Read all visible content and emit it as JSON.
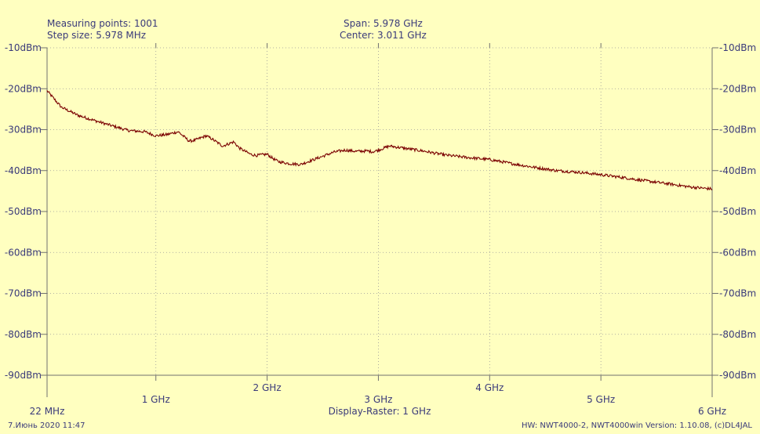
{
  "header": {
    "measuring_points": "Measuring points: 1001",
    "step_size": "Step size: 5.978 MHz",
    "span": "Span: 5.978 GHz",
    "center": "Center: 3.011 GHz"
  },
  "footer": {
    "datetime": "7.Июнь 2020 11:47",
    "version": "HW: NWT4000-2, NWT4000win Version: 1.10.08, (c)DL4JAL"
  },
  "colors": {
    "background": "#ffffc0",
    "trace": "#7a0000",
    "axis": "#707070",
    "text": "#3a3a7a"
  },
  "chart_data": {
    "type": "line",
    "x_start_label": "22 MHz",
    "x_end_label": "6 GHz",
    "x_raster_label": "Display-Raster: 1 GHz",
    "xlim": [
      0.022,
      6.0
    ],
    "ylim": [
      -90,
      -10
    ],
    "grid": true,
    "x_ticks": [
      {
        "v": 1,
        "label": "1 GHz"
      },
      {
        "v": 2,
        "label": "2 GHz"
      },
      {
        "v": 3,
        "label": "3 GHz"
      },
      {
        "v": 4,
        "label": "4 GHz"
      },
      {
        "v": 5,
        "label": "5 GHz"
      }
    ],
    "y_ticks": [
      {
        "v": -10,
        "label": "-10dBm"
      },
      {
        "v": -20,
        "label": "-20dBm"
      },
      {
        "v": -30,
        "label": "-30dBm"
      },
      {
        "v": -40,
        "label": "-40dBm"
      },
      {
        "v": -50,
        "label": "-50dBm"
      },
      {
        "v": -60,
        "label": "-60dBm"
      },
      {
        "v": -70,
        "label": "-70dBm"
      },
      {
        "v": -80,
        "label": "-80dBm"
      },
      {
        "v": -90,
        "label": "-90dBm"
      }
    ],
    "series": [
      {
        "x": [
          0.022,
          0.15,
          0.3,
          0.5,
          0.75,
          0.9,
          1.0,
          1.1,
          1.2,
          1.3,
          1.35,
          1.45,
          1.5,
          1.6,
          1.7,
          1.75,
          1.85,
          1.9,
          2.0,
          2.05,
          2.1,
          2.2,
          2.3,
          2.4,
          2.5,
          2.6,
          2.7,
          2.8,
          2.9,
          2.95,
          3.0,
          3.1,
          3.2,
          3.4,
          3.6,
          3.8,
          4.0,
          4.2,
          4.4,
          4.6,
          4.8,
          5.0,
          5.2,
          5.4,
          5.6,
          5.8,
          6.0
        ],
        "y": [
          -20.5,
          -24.5,
          -26.5,
          -28.2,
          -30.2,
          -30.5,
          -31.5,
          -31.2,
          -30.5,
          -32.8,
          -32.6,
          -31.5,
          -32.2,
          -34.0,
          -33.0,
          -34.5,
          -36.0,
          -36.3,
          -36.0,
          -37.0,
          -37.8,
          -38.3,
          -38.5,
          -37.5,
          -36.5,
          -35.5,
          -35.0,
          -35.3,
          -35.2,
          -35.4,
          -35.0,
          -34.0,
          -34.4,
          -35.2,
          -36.2,
          -36.8,
          -37.3,
          -38.3,
          -39.2,
          -40.0,
          -40.4,
          -41.0,
          -41.7,
          -42.5,
          -43.2,
          -44.0,
          -44.5
        ]
      }
    ]
  }
}
